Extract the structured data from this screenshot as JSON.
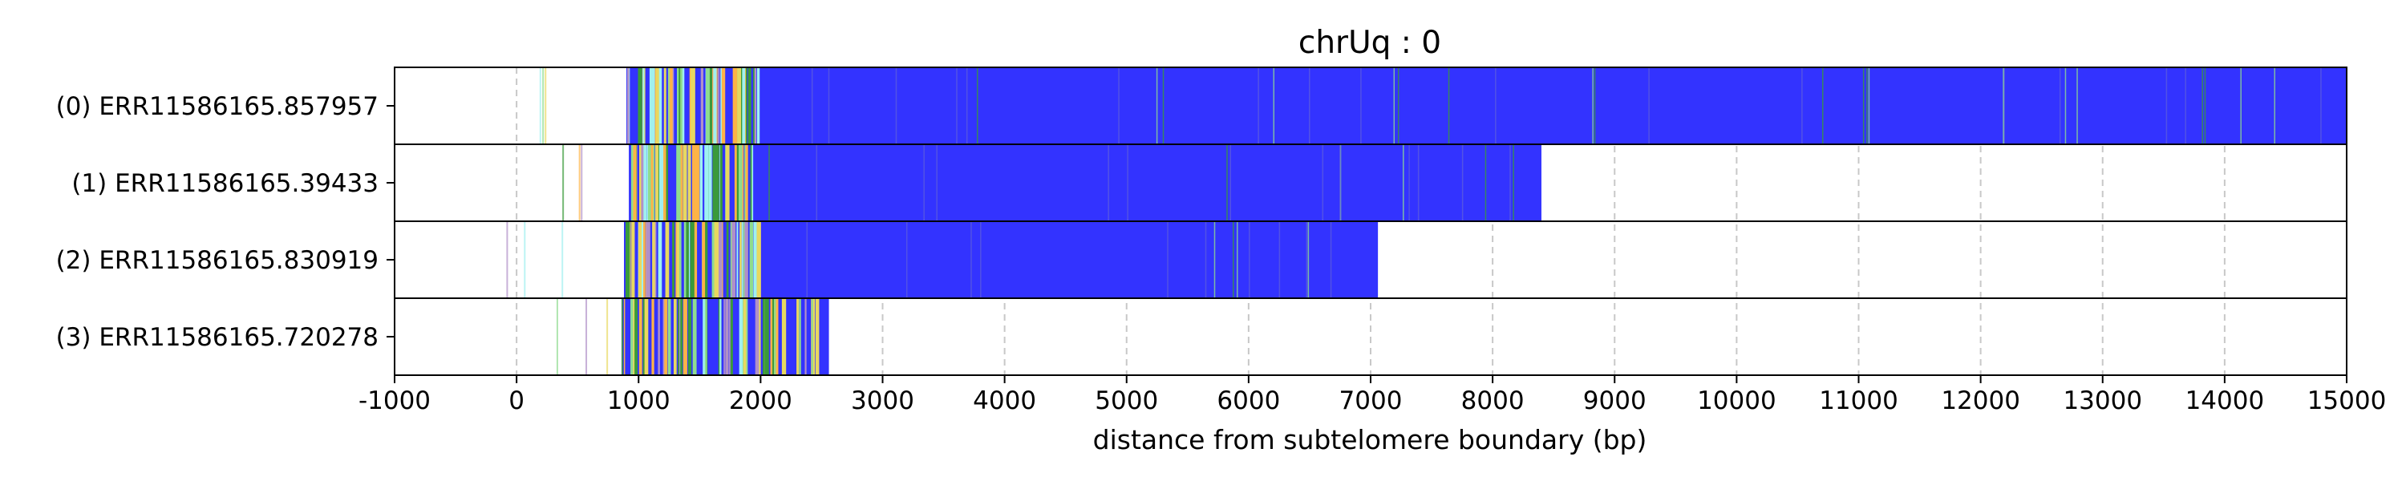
{
  "chart_data": {
    "type": "bar",
    "orientation": "horizontal",
    "title": "chrUq : 0",
    "xlabel": "distance from subtelomere boundary (bp)",
    "ylabel": "",
    "xlim": [
      -1000,
      15000
    ],
    "xticks": [
      -1000,
      0,
      1000,
      2000,
      3000,
      4000,
      5000,
      6000,
      7000,
      8000,
      9000,
      10000,
      11000,
      12000,
      13000,
      14000,
      15000
    ],
    "grid": true,
    "colors": {
      "bar": "#3333ff",
      "grid": "#c8c8c8",
      "stripe_green": "#3a9a3a",
      "stripe_light_green": "#8fdc8f",
      "stripe_orange": "#ffb347",
      "stripe_purple": "#b090c8",
      "stripe_cyan": "#a0f0f0",
      "stripe_yellow": "#e8d860"
    },
    "reads": [
      {
        "label": "(0) ERR11586165.857957",
        "start": 900,
        "end": 15000
      },
      {
        "label": "(1) ERR11586165.39433",
        "start": 920,
        "end": 8400
      },
      {
        "label": "(2) ERR11586165.830919",
        "start": 880,
        "end": 7060
      },
      {
        "label": "(3) ERR11586165.720278",
        "start": 860,
        "end": 2560
      }
    ]
  }
}
